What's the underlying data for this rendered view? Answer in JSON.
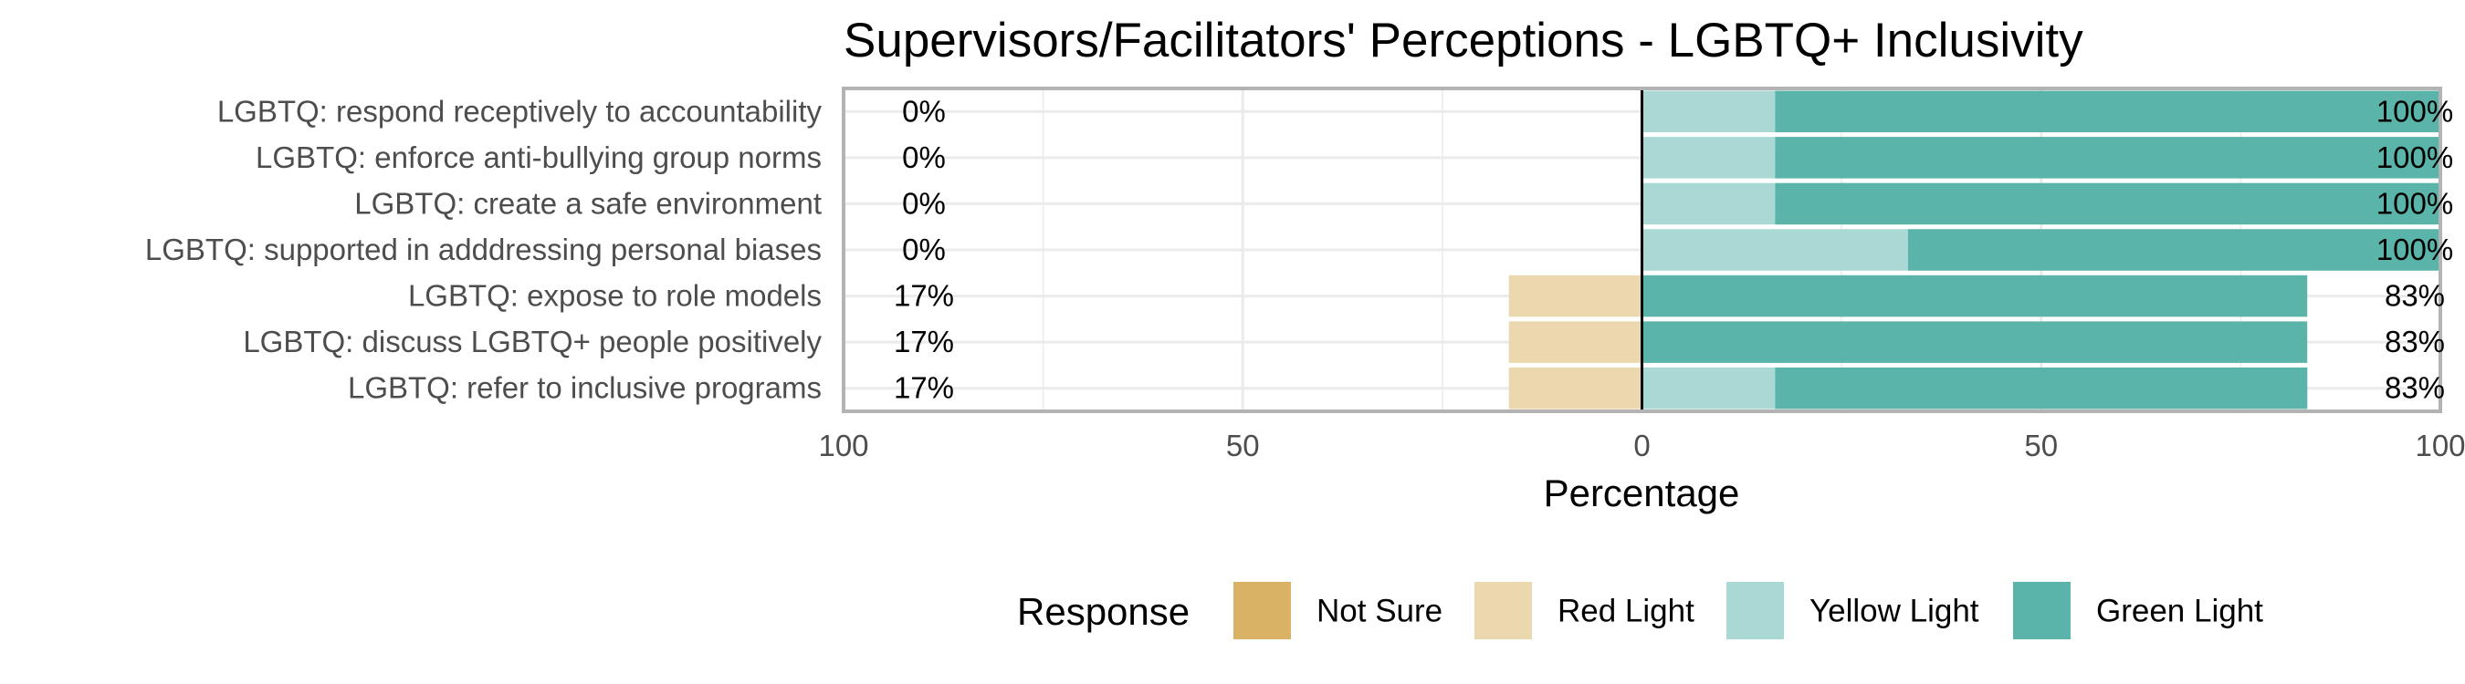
{
  "chart_data": {
    "type": "bar",
    "orientation": "horizontal",
    "stacking": "diverging",
    "title": "Supervisors/Facilitators' Perceptions - LGBTQ+ Inclusivity",
    "xlabel": "Percentage",
    "xlim": [
      -100,
      100
    ],
    "xticks": [
      -100,
      -50,
      0,
      50,
      100
    ],
    "xtick_labels": [
      "100",
      "50",
      "0",
      "50",
      "100"
    ],
    "grid": true,
    "legend_position": "bottom",
    "legend_title": "Response",
    "categories": [
      "LGBTQ: respond receptively to accountability",
      "LGBTQ: enforce anti-bullying group norms",
      "LGBTQ: create a safe environment",
      "LGBTQ: supported in adddressing personal biases",
      "LGBTQ: expose to role models",
      "LGBTQ: discuss LGBTQ+ people positively",
      "LGBTQ: refer to inclusive programs"
    ],
    "series": [
      {
        "name": "Not Sure",
        "color": "#D9B265",
        "side": "negative",
        "values": [
          0,
          0,
          0,
          0,
          0,
          0,
          0
        ]
      },
      {
        "name": "Red Light",
        "color": "#EBD8AE",
        "side": "negative",
        "values": [
          0,
          0,
          0,
          0,
          16.67,
          16.67,
          16.67
        ]
      },
      {
        "name": "Yellow Light",
        "color": "#AAD8D4",
        "side": "positive",
        "values": [
          16.67,
          16.67,
          16.67,
          33.33,
          0,
          0,
          16.67
        ]
      },
      {
        "name": "Green Light",
        "color": "#5AB4A9",
        "side": "positive",
        "values": [
          83.33,
          83.33,
          83.33,
          66.67,
          83.33,
          83.33,
          66.67
        ]
      }
    ],
    "left_labels": [
      "0%",
      "0%",
      "0%",
      "0%",
      "17%",
      "17%",
      "17%"
    ],
    "right_labels": [
      "100%",
      "100%",
      "100%",
      "100%",
      "83%",
      "83%",
      "83%"
    ]
  }
}
